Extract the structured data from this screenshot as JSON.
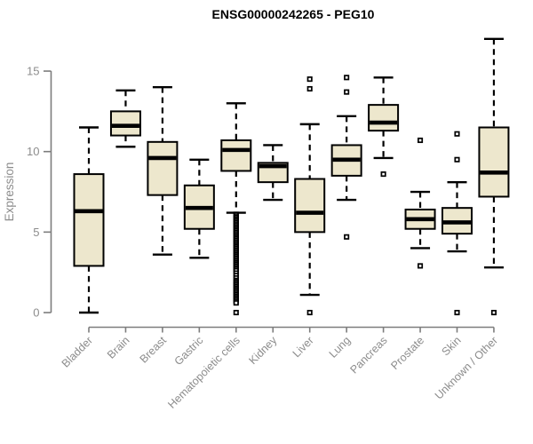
{
  "chart_data": {
    "type": "boxplot",
    "title": "ENSG00000242265 - PEG10",
    "xlabel": "",
    "ylabel": "Expression",
    "yticks": [
      0,
      5,
      10,
      15
    ],
    "ylim": [
      0,
      17.2
    ],
    "grid": false,
    "legend": "none",
    "categories": [
      "Bladder",
      "Brain",
      "Breast",
      "Gastric",
      "Hematopoietic cells",
      "Kidney",
      "Liver",
      "Lung",
      "Pancreas",
      "Prostate",
      "Skin",
      "Unknown / Other"
    ],
    "boxes": [
      {
        "category": "Bladder",
        "low": 0.0,
        "q1": 2.9,
        "median": 6.3,
        "q3": 8.6,
        "high": 11.5,
        "outliers": []
      },
      {
        "category": "Brain",
        "low": 10.3,
        "q1": 11.0,
        "median": 11.6,
        "q3": 12.5,
        "high": 13.8,
        "outliers": []
      },
      {
        "category": "Breast",
        "low": 3.6,
        "q1": 7.3,
        "median": 9.6,
        "q3": 10.6,
        "high": 14.0,
        "outliers": []
      },
      {
        "category": "Gastric",
        "low": 3.4,
        "q1": 5.2,
        "median": 6.5,
        "q3": 7.9,
        "high": 9.5,
        "outliers": []
      },
      {
        "category": "Hematopoietic cells",
        "low": 6.2,
        "q1": 8.8,
        "median": 10.1,
        "q3": 10.7,
        "high": 13.0,
        "outliers": [
          6.1,
          6.0,
          5.9,
          5.8,
          5.7,
          5.6,
          5.5,
          5.4,
          5.3,
          5.2,
          5.1,
          5.0,
          4.9,
          4.8,
          4.7,
          4.6,
          4.5,
          4.4,
          4.3,
          4.2,
          4.1,
          4.0,
          3.9,
          3.8,
          3.7,
          3.6,
          3.5,
          3.4,
          3.3,
          3.2,
          3.1,
          3.0,
          2.9,
          2.8,
          2.7,
          2.6,
          2.45,
          2.3,
          2.15,
          2.0,
          1.9,
          1.8,
          1.7,
          1.6,
          1.5,
          1.4,
          1.3,
          1.2,
          1.1,
          1.0,
          0.9,
          0.8,
          0.7,
          0.6,
          0.0
        ]
      },
      {
        "category": "Kidney",
        "low": 7.0,
        "q1": 8.1,
        "median": 9.1,
        "q3": 9.3,
        "high": 10.4,
        "outliers": []
      },
      {
        "category": "Liver",
        "low": 1.1,
        "q1": 5.0,
        "median": 6.2,
        "q3": 8.3,
        "high": 11.7,
        "outliers": [
          14.5,
          13.9,
          0.0
        ]
      },
      {
        "category": "Lung",
        "low": 7.0,
        "q1": 8.5,
        "median": 9.5,
        "q3": 10.4,
        "high": 12.2,
        "outliers": [
          14.6,
          13.7,
          4.7
        ]
      },
      {
        "category": "Pancreas",
        "low": 9.6,
        "q1": 11.3,
        "median": 11.8,
        "q3": 12.9,
        "high": 14.6,
        "outliers": [
          8.6
        ]
      },
      {
        "category": "Prostate",
        "low": 4.0,
        "q1": 5.2,
        "median": 5.8,
        "q3": 6.4,
        "high": 7.5,
        "outliers": [
          10.7,
          2.9
        ]
      },
      {
        "category": "Skin",
        "low": 3.8,
        "q1": 4.9,
        "median": 5.6,
        "q3": 6.5,
        "high": 8.1,
        "outliers": [
          11.1,
          9.5,
          0.0
        ]
      },
      {
        "category": "Unknown / Other",
        "low": 2.8,
        "q1": 7.2,
        "median": 8.7,
        "q3": 11.5,
        "high": 17.0,
        "outliers": [
          0.0
        ]
      }
    ]
  },
  "colors": {
    "box_fill": "#EDE7CD",
    "box_border": "#000000",
    "median": "#000000",
    "whisker": "#000000",
    "outlier_stroke": "#000000",
    "outlier_fill": "#ffffff",
    "axis": "#7d7d7d",
    "tick_text": "#8c8c8c",
    "title_text": "#000000",
    "background": "#ffffff"
  }
}
